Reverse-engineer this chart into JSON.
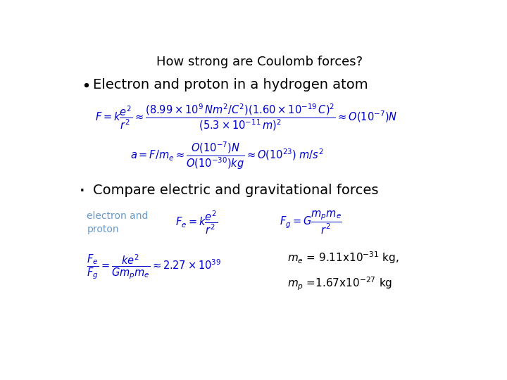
{
  "title": "How strong are Coulomb forces?",
  "title_fontsize": 13,
  "title_color": "#000000",
  "background_color": "#ffffff",
  "text_color": "#000000",
  "blue_color": "#0000cd",
  "label_color": "#6699cc",
  "bullet1_text": "Electron and proton in a hydrogen atom",
  "bullet1_fontsize": 14,
  "eq1_fontsize": 10.5,
  "eq2_fontsize": 10.5,
  "bullet2_text": "Compare electric and gravitational forces",
  "bullet2_fontsize": 14,
  "label_electron": "electron and\nproton",
  "label_electron_fontsize": 10,
  "eq3_fontsize": 10.5,
  "eq4_fontsize": 10.5,
  "me_fontsize": 11,
  "mp_fontsize": 11
}
